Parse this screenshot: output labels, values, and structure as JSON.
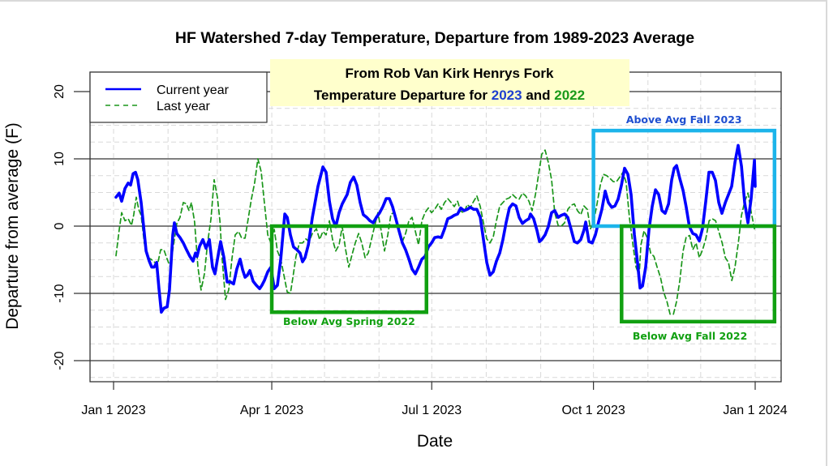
{
  "chart_data": {
    "type": "line",
    "title": "HF Watershed 7-day Temperature, Departure from 1989-2023 Average",
    "xlabel": "Date",
    "ylabel": "Departure from average (F)",
    "x_unit": "days since Jan 1 2023",
    "xlim": [
      -13,
      380
    ],
    "ylim": [
      -23,
      23
    ],
    "grid": true,
    "x_ticks": [
      {
        "label": "Jan 1 2023",
        "day": 0
      },
      {
        "label": "Apr 1 2023",
        "day": 90
      },
      {
        "label": "Jul 1 2023",
        "day": 181
      },
      {
        "label": "Oct 1 2023",
        "day": 273
      },
      {
        "label": "Jan 1 2024",
        "day": 365
      }
    ],
    "y_ticks": [
      -20,
      -10,
      0,
      10,
      20
    ],
    "legend": {
      "placement": "top-left",
      "entries": [
        {
          "label": "Current year",
          "style": "solid",
          "color": "#0000ff"
        },
        {
          "label": "Last year",
          "style": "dashed",
          "color": "#1a961a"
        }
      ]
    },
    "series": [
      {
        "name": "Current year",
        "color": "#0000ff",
        "x": [
          1.4,
          3.2,
          4.6,
          6.5,
          8.3,
          9.7,
          11.1,
          12.5,
          13.8,
          15.7,
          17.1,
          18.5,
          20.3,
          21.7,
          23.1,
          24.5,
          25.8,
          27.2,
          28.6,
          30.5,
          31.8,
          33.7,
          34.6,
          36.0,
          37.8,
          39.7,
          41.5,
          43.4,
          45.2,
          46.6,
          47.5,
          48.9,
          50.8,
          52.6,
          54.5,
          56.3,
          57.7,
          59.1,
          60.9,
          62.8,
          64.6,
          66.5,
          68.3,
          70.1,
          72.0,
          73.4,
          74.8,
          76.1,
          77.5,
          79.4,
          81.2,
          83.1,
          84.4,
          85.8,
          87.7,
          89.5,
          91.4,
          93.2,
          95.1,
          97.4,
          98.8,
          100.6,
          102.4,
          104.3,
          106.1,
          107.5,
          108.9,
          110.8,
          113.1,
          116.3,
          119.1,
          120.9,
          122.8,
          124.6,
          126.4,
          128.3,
          130.1,
          132.9,
          134.7,
          136.6,
          138.4,
          140.3,
          142.1,
          144.0,
          145.8,
          147.7,
          149.5,
          151.4,
          153.2,
          155.1,
          156.9,
          158.7,
          160.6,
          162.4,
          164.3,
          166.1,
          168.0,
          169.8,
          171.7,
          173.5,
          175.4,
          177.2,
          179.1,
          180.9,
          182.7,
          184.6,
          186.4,
          188.3,
          190.1,
          192.0,
          193.8,
          195.7,
          197.5,
          199.4,
          201.2,
          203.0,
          204.9,
          206.7,
          208.6,
          210.4,
          212.3,
          214.1,
          216.0,
          217.8,
          219.7,
          221.5,
          223.3,
          225.2,
          227.0,
          228.9,
          230.7,
          232.6,
          234.4,
          236.3,
          237.2,
          239.0,
          240.9,
          242.3,
          243.6,
          245.5,
          247.3,
          249.2,
          251.0,
          252.9,
          254.7,
          256.6,
          258.4,
          260.3,
          262.1,
          263.9,
          265.8,
          267.6,
          268.6,
          270.4,
          272.3,
          274.1,
          276.0,
          277.8,
          279.7,
          281.5,
          283.4,
          285.2,
          287.0,
          288.9,
          290.7,
          292.6,
          294.4,
          296.3,
          298.1,
          299.5,
          300.9,
          302.7,
          304.6,
          306.4,
          308.3,
          310.1,
          312.0,
          313.8,
          315.7,
          317.5,
          318.9,
          320.3,
          322.1,
          324.0,
          325.8,
          327.6,
          329.5,
          331.3,
          333.2,
          335.0,
          336.9,
          338.7,
          340.6,
          342.4,
          344.3,
          346.1,
          348.0,
          349.8,
          351.6,
          353.5,
          355.3,
          357.2,
          359.0,
          360.9,
          362.7,
          364.6,
          365.0
        ],
        "y": [
          4.3,
          4.9,
          3.7,
          5.6,
          6.4,
          6.1,
          7.8,
          8.0,
          6.9,
          3.5,
          -0.1,
          -3.7,
          -5.2,
          -6.1,
          -6.1,
          -5.4,
          -9.2,
          -12.8,
          -12.2,
          -12.0,
          -9.5,
          -1.3,
          0.5,
          -1.1,
          -1.7,
          -2.5,
          -3.5,
          -4.5,
          -5.2,
          -4.0,
          -4.5,
          -3.0,
          -2.0,
          -3.3,
          -2.0,
          -6.1,
          -7.1,
          -4.9,
          -2.3,
          -4.7,
          -8.3,
          -8.3,
          -8.6,
          -6.4,
          -4.9,
          -6.5,
          -7.6,
          -7.3,
          -6.6,
          -8.2,
          -8.8,
          -9.3,
          -8.8,
          -8.1,
          -6.8,
          -6.1,
          -9.3,
          -8.8,
          -4.9,
          1.8,
          1.3,
          -1.3,
          -3.1,
          -3.5,
          -4.0,
          -5.3,
          -4.7,
          -2.8,
          1.3,
          5.9,
          8.8,
          8.0,
          3.7,
          1.1,
          -0.1,
          2.0,
          3.3,
          4.7,
          6.5,
          7.3,
          6.1,
          3.5,
          1.7,
          1.3,
          0.8,
          0.5,
          1.3,
          2.0,
          2.9,
          4.1,
          4.1,
          2.9,
          1.1,
          -0.7,
          -2.5,
          -3.5,
          -4.9,
          -6.4,
          -7.1,
          -6.1,
          -4.9,
          -4.5,
          -3.1,
          -2.5,
          -1.7,
          -1.6,
          -1.7,
          -0.4,
          1.1,
          1.3,
          1.6,
          1.8,
          2.7,
          2.3,
          2.5,
          2.8,
          2.5,
          2.5,
          1.3,
          -2.0,
          -5.4,
          -7.3,
          -6.8,
          -5.2,
          -4.0,
          -2.0,
          0.5,
          2.7,
          3.3,
          3.0,
          1.3,
          0.4,
          0.8,
          1.1,
          1.8,
          1.1,
          -0.7,
          -2.3,
          -2.0,
          -1.3,
          -0.1,
          2.0,
          2.3,
          1.3,
          1.6,
          1.8,
          1.3,
          -0.5,
          -2.3,
          -2.5,
          -2.0,
          -0.6,
          0.6,
          -2.3,
          -2.5,
          -1.3,
          0.7,
          2.5,
          5.2,
          3.5,
          2.8,
          3.0,
          4.0,
          6.1,
          8.6,
          7.7,
          4.7,
          -1.3,
          -5.5,
          -9.2,
          -8.9,
          -6.1,
          -0.5,
          2.9,
          5.4,
          4.7,
          2.3,
          1.9,
          3.3,
          6.9,
          8.6,
          9.0,
          7.1,
          5.3,
          2.8,
          -0.1,
          -1.1,
          -1.3,
          -2.2,
          -0.4,
          3.7,
          8.0,
          8.0,
          6.8,
          3.5,
          1.9,
          3.5,
          4.7,
          5.9,
          9.5,
          12.0,
          8.9,
          3.5,
          0.5,
          4.1,
          9.8,
          5.9
        ]
      },
      {
        "name": "Last year",
        "color": "#1a961a",
        "x": [
          1.4,
          3.2,
          4.6,
          6.5,
          8.3,
          10.2,
          11.5,
          12.9,
          14.3,
          15.7,
          17.5,
          19.4,
          21.2,
          23.1,
          24.9,
          26.8,
          28.6,
          30.5,
          32.3,
          34.1,
          36.0,
          37.8,
          39.7,
          41.5,
          42.9,
          44.3,
          46.1,
          48.0,
          49.8,
          51.7,
          53.5,
          55.4,
          57.2,
          59.1,
          60.5,
          61.8,
          63.7,
          65.5,
          67.4,
          69.2,
          71.1,
          72.9,
          74.8,
          76.6,
          78.4,
          80.3,
          82.1,
          84.0,
          85.8,
          87.7,
          89.5,
          91.4,
          93.2,
          95.1,
          96.9,
          98.8,
          100.6,
          102.0,
          103.8,
          105.7,
          107.5,
          109.4,
          111.2,
          113.1,
          115.4,
          117.2,
          119.1,
          120.9,
          122.8,
          124.6,
          126.4,
          128.3,
          130.1,
          132.0,
          133.8,
          135.7,
          137.5,
          139.4,
          141.2,
          143.1,
          144.9,
          146.8,
          148.6,
          150.4,
          152.3,
          154.1,
          156.0,
          157.8,
          159.7,
          160.6,
          162.4,
          164.3,
          166.1,
          168.0,
          169.8,
          171.7,
          173.5,
          175.4,
          177.2,
          179.1,
          180.9,
          182.7,
          184.6,
          186.4,
          188.3,
          190.1,
          192.0,
          193.8,
          195.7,
          197.5,
          199.4,
          201.2,
          203.0,
          204.9,
          206.7,
          208.6,
          210.4,
          212.3,
          214.1,
          216.0,
          217.8,
          219.7,
          221.5,
          223.3,
          225.2,
          227.0,
          228.9,
          230.7,
          232.6,
          234.4,
          236.3,
          238.1,
          240.0,
          241.8,
          243.6,
          245.5,
          247.3,
          249.2,
          251.0,
          252.9,
          254.7,
          256.6,
          258.4,
          260.3,
          262.1,
          263.9,
          265.8,
          267.6,
          269.5,
          271.3,
          273.2,
          275.0,
          276.9,
          278.7,
          280.6,
          282.4,
          284.3,
          286.1,
          288.0,
          289.8,
          291.6,
          293.5,
          295.3,
          297.2,
          299.0,
          300.0,
          301.8,
          303.7,
          305.5,
          307.4,
          309.2,
          311.1,
          312.9,
          314.8,
          316.6,
          318.5,
          320.3,
          322.2,
          324.0,
          325.8,
          327.7,
          329.5,
          331.4,
          333.2,
          335.1,
          336.9,
          338.8,
          340.6,
          342.5,
          344.3,
          346.2,
          348.0,
          349.8,
          351.7,
          353.5,
          355.4,
          357.2,
          359.1,
          360.9,
          362.8,
          364.6
        ],
        "y": [
          -4.4,
          -0.6,
          2.0,
          0.8,
          1.1,
          0.1,
          1.7,
          4.3,
          2.5,
          1.6,
          -2.5,
          -4.7,
          -4.9,
          -5.3,
          -5.8,
          -3.5,
          -3.5,
          -4.9,
          -6.1,
          -2.8,
          0.4,
          1.3,
          3.5,
          3.3,
          2.3,
          3.5,
          0.6,
          -6.1,
          -9.5,
          -7.1,
          -2.5,
          1.1,
          6.9,
          4.2,
          0.8,
          -4.9,
          -10.9,
          -9.5,
          -4.7,
          -1.3,
          -0.8,
          -1.8,
          -1.8,
          1.1,
          4.0,
          6.5,
          10.0,
          8.1,
          3.5,
          -1.3,
          -2.5,
          -0.5,
          -3.7,
          -4.9,
          -7.3,
          -9.8,
          -10.0,
          -7.7,
          -4.5,
          -2.5,
          -2.5,
          -1.9,
          -2.3,
          -1.1,
          -0.4,
          -2.0,
          -0.8,
          -1.3,
          0.8,
          -2.0,
          -3.7,
          -2.8,
          -0.1,
          -3.5,
          -6.1,
          -4.2,
          -2.5,
          -1.1,
          -2.5,
          -4.7,
          -4.0,
          -1.9,
          0.1,
          2.0,
          -0.8,
          -3.7,
          -1.3,
          1.8,
          2.0,
          1.3,
          -1.1,
          -2.3,
          -1.1,
          0.8,
          1.3,
          -0.8,
          -2.8,
          0.8,
          2.0,
          2.7,
          2.0,
          2.5,
          3.3,
          2.5,
          3.5,
          4.1,
          3.5,
          2.9,
          3.7,
          2.2,
          2.0,
          3.2,
          2.8,
          3.7,
          4.5,
          2.9,
          0.5,
          -1.9,
          -2.5,
          -1.6,
          0.8,
          3.0,
          3.5,
          4.0,
          4.2,
          4.7,
          4.2,
          4.0,
          4.9,
          4.5,
          3.7,
          2.3,
          4.7,
          7.7,
          10.7,
          11.3,
          9.5,
          6.9,
          2.0,
          0.1,
          0.0,
          0.5,
          2.5,
          3.1,
          3.3,
          2.3,
          1.7,
          3.0,
          2.5,
          -0.4,
          0.8,
          3.3,
          6.1,
          7.7,
          7.5,
          7.1,
          6.6,
          6.6,
          7.3,
          8.0,
          6.5,
          1.1,
          -2.5,
          -6.1,
          -7.3,
          -2.8,
          -0.7,
          -1.8,
          -4.0,
          -4.5,
          -6.1,
          -7.6,
          -9.8,
          -11.2,
          -13.1,
          -13.1,
          -11.2,
          -8.0,
          -3.7,
          -1.6,
          -1.4,
          -3.5,
          -2.5,
          -4.7,
          -3.5,
          -1.9,
          0.8,
          1.1,
          0.8,
          -0.8,
          -2.5,
          -4.7,
          -5.4,
          -8.1,
          -6.1,
          -2.5,
          1.6,
          3.7,
          4.9,
          2.0,
          -0.4
        ]
      }
    ],
    "annotations": {
      "source_note": {
        "line1": "From Rob Van Kirk Henrys Fork",
        "line2_prefix": "Temperature Departure for ",
        "year_current": "2023",
        "conjunction": " and ",
        "year_last": "2022",
        "background": "#ffffcc",
        "color_current": "#1f3fcf",
        "color_last": "#1a9a1a"
      },
      "boxes": [
        {
          "label": "Below Avg Spring 2022",
          "color": "#11a011",
          "label_color": "#11a011",
          "x_from_day": 90,
          "x_to_day": 178,
          "y_from": -12.8,
          "y_to": 0
        },
        {
          "label": "Above Avg Fall 2023",
          "color": "#1cb4ea",
          "label_color": "#1f4fd0",
          "x_from_day": 273,
          "x_to_day": 376,
          "y_from": 0,
          "y_to": 14.2
        },
        {
          "label": "Below Avg Fall 2022",
          "color": "#11a011",
          "label_color": "#11a011",
          "x_from_day": 289,
          "x_to_day": 376,
          "y_from": -14.2,
          "y_to": 0
        }
      ]
    }
  }
}
